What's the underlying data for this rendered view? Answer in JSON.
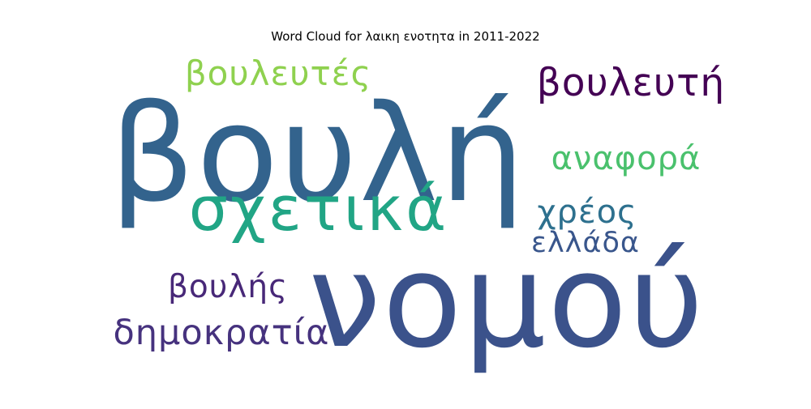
{
  "chart_data": {
    "type": "wordcloud",
    "title": "Word Cloud for λαικη ενοτητα in 2011-2022",
    "words": [
      {
        "text": "βουλή",
        "weight": 1.0,
        "color": "#33638d"
      },
      {
        "text": "νομού",
        "weight": 0.97,
        "color": "#3b528b"
      },
      {
        "text": "σχετικά",
        "weight": 0.62,
        "color": "#21a585"
      },
      {
        "text": "βουλευτές",
        "weight": 0.34,
        "color": "#8fd14f"
      },
      {
        "text": "βουλευτή",
        "weight": 0.34,
        "color": "#440154"
      },
      {
        "text": "αναφορά",
        "weight": 0.33,
        "color": "#4ac16d"
      },
      {
        "text": "δημοκρατία",
        "weight": 0.33,
        "color": "#46327e"
      },
      {
        "text": "βουλής",
        "weight": 0.3,
        "color": "#482878"
      },
      {
        "text": "χρέος",
        "weight": 0.3,
        "color": "#2d708e"
      },
      {
        "text": "ελλάδα",
        "weight": 0.27,
        "color": "#39568c"
      }
    ]
  }
}
